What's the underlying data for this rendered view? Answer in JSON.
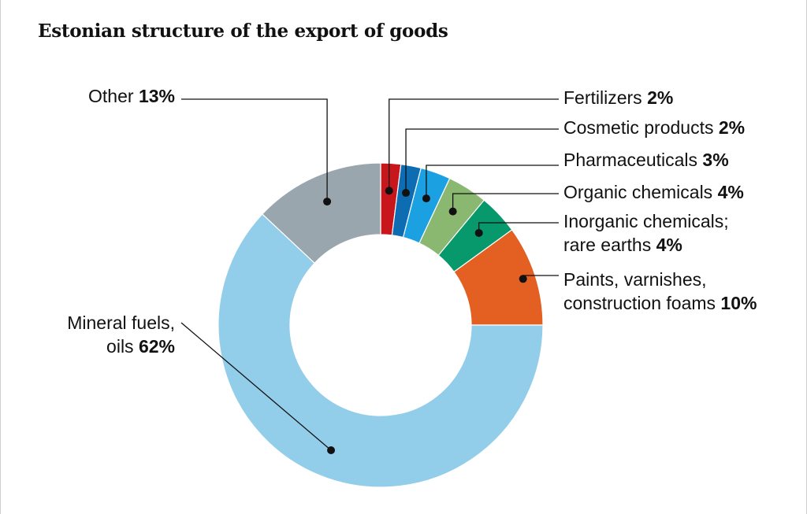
{
  "title": "Estonian structure of the export of goods",
  "chart_data": {
    "type": "pie",
    "variant": "donut",
    "title": "Estonian structure of the export of goods",
    "slices": [
      {
        "key": "fertilizers",
        "lines": [
          "Fertilizers"
        ],
        "pct_label": "2%",
        "value": 2,
        "color": "#c8161d"
      },
      {
        "key": "cosmetic",
        "lines": [
          "Cosmetic products"
        ],
        "pct_label": "2%",
        "value": 2,
        "color": "#0e6cb3"
      },
      {
        "key": "pharma",
        "lines": [
          "Pharmaceuticals"
        ],
        "pct_label": "3%",
        "value": 3,
        "color": "#1ba1e2"
      },
      {
        "key": "organic",
        "lines": [
          "Organic chemicals"
        ],
        "pct_label": "4%",
        "value": 4,
        "color": "#8bb870"
      },
      {
        "key": "inorganic",
        "lines": [
          "Inorganic chemicals;",
          "rare earths"
        ],
        "pct_label": "4%",
        "value": 4,
        "color": "#07986b"
      },
      {
        "key": "paints",
        "lines": [
          "Paints, varnishes,",
          "construction foams"
        ],
        "pct_label": "10%",
        "value": 10,
        "color": "#e35f22"
      },
      {
        "key": "mineral",
        "lines": [
          "Mineral fuels,",
          "oils"
        ],
        "pct_label": "62%",
        "value": 62,
        "color": "#92cdea"
      },
      {
        "key": "other",
        "lines": [
          "Other"
        ],
        "pct_label": "13%",
        "value": 13,
        "color": "#9aa6ad"
      }
    ]
  }
}
